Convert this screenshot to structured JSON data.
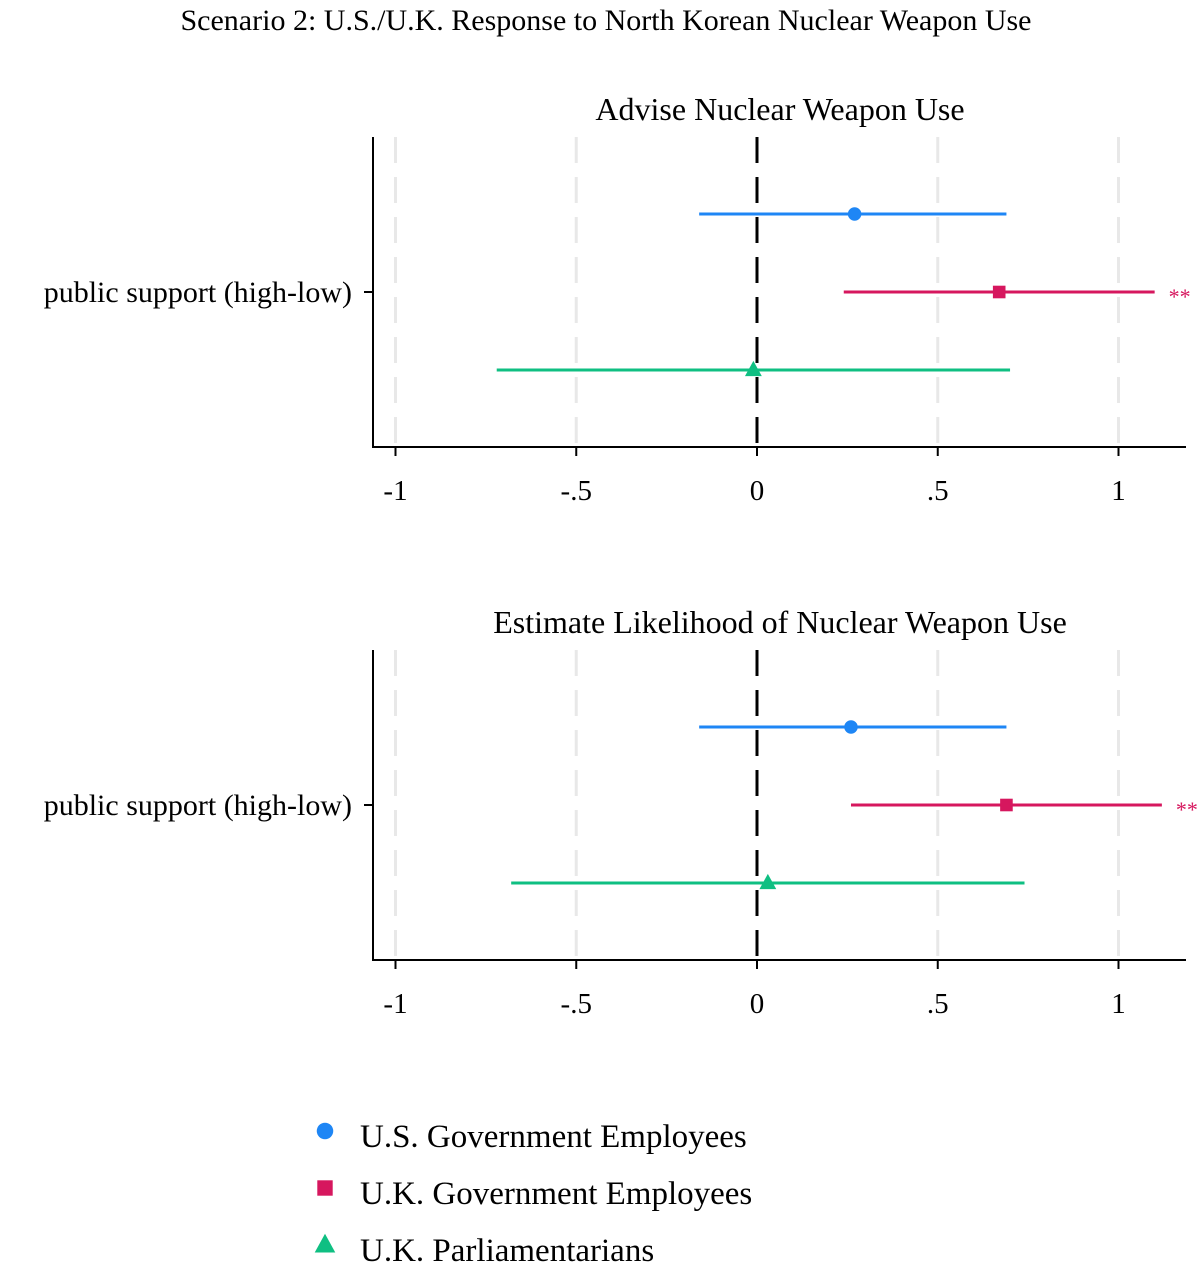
{
  "figure_title": "Scenario 2: U.S./U.K. Response to North Korean Nuclear Weapon Use",
  "legend": [
    {
      "label": "U.S. Government Employees",
      "marker": "circle",
      "color": "#1e86f5"
    },
    {
      "label": "U.K. Government Employees",
      "marker": "square",
      "color": "#d6175e"
    },
    {
      "label": "U.K. Parliamentarians",
      "marker": "triangle",
      "color": "#0fbf82"
    }
  ],
  "chart_data": [
    {
      "type": "scatter",
      "subtype": "coefficient-plot",
      "title": "Advise Nuclear Weapon Use",
      "ylabel_category": "public support (high-low)",
      "xlim": [
        -1.06,
        1.18
      ],
      "xticks": [
        -1,
        -0.5,
        0,
        0.5,
        1
      ],
      "xtick_labels": [
        "-1",
        "-.5",
        "0",
        ".5",
        "1"
      ],
      "reference_line": 0,
      "grid": "vertical dashed",
      "series": [
        {
          "name": "U.S. Government Employees",
          "estimate": 0.27,
          "ci_low": -0.16,
          "ci_high": 0.69,
          "significance": ""
        },
        {
          "name": "U.K. Government Employees",
          "estimate": 0.67,
          "ci_low": 0.24,
          "ci_high": 1.1,
          "significance": "**"
        },
        {
          "name": "U.K. Parliamentarians",
          "estimate": -0.01,
          "ci_low": -0.72,
          "ci_high": 0.7,
          "significance": ""
        }
      ]
    },
    {
      "type": "scatter",
      "subtype": "coefficient-plot",
      "title": "Estimate Likelihood of Nuclear Weapon Use",
      "ylabel_category": "public support (high-low)",
      "xlim": [
        -1.06,
        1.18
      ],
      "xticks": [
        -1,
        -0.5,
        0,
        0.5,
        1
      ],
      "xtick_labels": [
        "-1",
        "-.5",
        "0",
        ".5",
        "1"
      ],
      "reference_line": 0,
      "grid": "vertical dashed",
      "series": [
        {
          "name": "U.S. Government Employees",
          "estimate": 0.26,
          "ci_low": -0.16,
          "ci_high": 0.69,
          "significance": ""
        },
        {
          "name": "U.K. Government Employees",
          "estimate": 0.69,
          "ci_low": 0.26,
          "ci_high": 1.12,
          "significance": "**"
        },
        {
          "name": "U.K. Parliamentarians",
          "estimate": 0.03,
          "ci_low": -0.68,
          "ci_high": 0.74,
          "significance": ""
        }
      ]
    }
  ]
}
